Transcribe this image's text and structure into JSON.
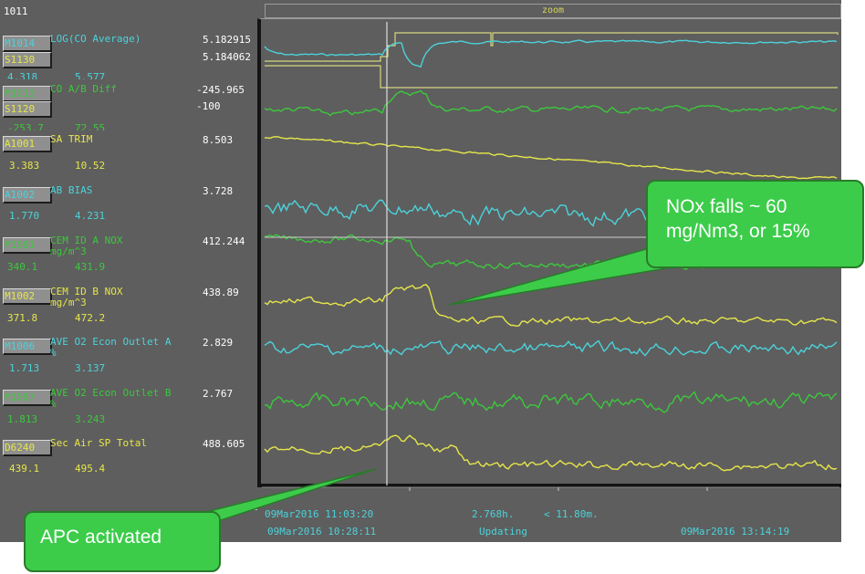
{
  "window": {
    "title": "1011",
    "zoom_label": "zoom"
  },
  "tags": [
    {
      "id": "M1014",
      "description": "LOG(CO Average)",
      "value": "5.182915",
      "color": "#4cd2da",
      "sp_id": "S1130",
      "sp_value": "5.184062",
      "range_low": "4.318",
      "range_high": "5.577"
    },
    {
      "id": "M1013",
      "description": "CO A/B Diff",
      "value": "-245.965",
      "color": "#3cc83c",
      "sp_id": "S1120",
      "sp_value": "-100",
      "range_low": "-253.7",
      "range_high": "72.55"
    },
    {
      "id": "A1001",
      "description": "SA TRIM",
      "value": "8.503",
      "color": "#e6e64a",
      "range_low": "3.383",
      "range_high": "10.52"
    },
    {
      "id": "A1002",
      "description": "AB BIAS",
      "value": "3.728",
      "color": "#4cd2da",
      "range_low": "1.770",
      "range_high": "4.231"
    },
    {
      "id": "M1001",
      "description": "CEM ID A NOX",
      "unit": "mg/m^3",
      "value": "412.244",
      "color": "#3cc83c",
      "range_low": "340.1",
      "range_high": "431.9"
    },
    {
      "id": "M1002",
      "description": "CEM ID B NOX",
      "unit": "mg/m^3",
      "value": "438.89",
      "color": "#e6e64a",
      "range_low": "371.8",
      "range_high": "472.2"
    },
    {
      "id": "M1006",
      "description": "AVE O2 Econ Outlet A",
      "unit": "%",
      "value": "2.829",
      "color": "#4cd2da",
      "range_low": "1.713",
      "range_high": "3.137"
    },
    {
      "id": "M1007",
      "description": "AVE O2 Econ Outlet B",
      "unit": "%",
      "value": "2.767",
      "color": "#3cc83c",
      "range_low": "1.813",
      "range_high": "3.243"
    },
    {
      "id": "D6240",
      "description": "Sec Air SP Total",
      "value": "488.605",
      "color": "#e6e64a",
      "range_low": "439.1",
      "range_high": "495.4"
    }
  ],
  "footer": {
    "cursor_time": "09Mar2016 11:03:20",
    "start_time": "09Mar2016 10:28:11",
    "span": "2.768h.",
    "window": "< 11.80m.",
    "status": "Updating",
    "end_time": "09Mar2016 13:14:19"
  },
  "annotations": {
    "nox_callout": "NOx falls ~ 60 mg/Nm3, or 15%",
    "apc_callout": "APC activated"
  },
  "colors": {
    "background": "#5e5e5e",
    "cyan": "#4cd2da",
    "green": "#3cc83c",
    "yellow": "#e6e64a",
    "callout": "#3ccc4a"
  }
}
